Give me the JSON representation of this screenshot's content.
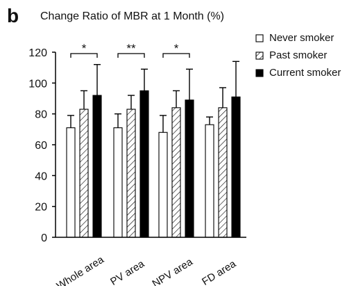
{
  "panel_label": "b",
  "chart_data": {
    "type": "bar",
    "title": "Change Ratio of MBR at 1 Month (%)",
    "xlabel": "",
    "ylabel": "",
    "categories": [
      "Whole area",
      "PV area",
      "NPV area",
      "FD area"
    ],
    "ylim": [
      0,
      120
    ],
    "ticks": [
      0,
      20,
      40,
      60,
      80,
      100,
      120
    ],
    "tick_labels": [
      "0",
      "20",
      "40",
      "60",
      "80",
      "100",
      "120"
    ],
    "legend_position": "top-right",
    "grid": false,
    "series": [
      {
        "name": "Never smoker",
        "values": [
          71,
          71,
          68,
          73
        ],
        "errors": [
          8,
          9,
          11,
          5
        ],
        "pattern": "white"
      },
      {
        "name": "Past smoker",
        "values": [
          83,
          83,
          84,
          84
        ],
        "errors": [
          12,
          9,
          11,
          13
        ],
        "pattern": "hatched"
      },
      {
        "name": "Current smoker",
        "values": [
          92,
          95,
          89,
          91
        ],
        "errors": [
          20,
          14,
          20,
          23
        ],
        "pattern": "black"
      }
    ],
    "significance": [
      {
        "category_index": 0,
        "label": "*"
      },
      {
        "category_index": 1,
        "label": "**"
      },
      {
        "category_index": 2,
        "label": "*"
      }
    ]
  }
}
